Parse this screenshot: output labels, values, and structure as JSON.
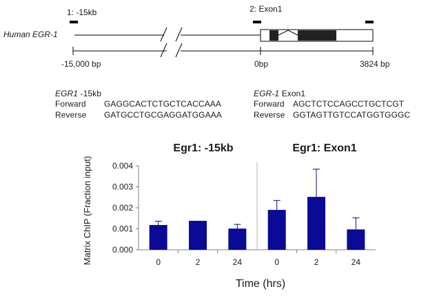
{
  "diagram": {
    "gene_label": "Human EGR-1",
    "site1_label": "1: -15kb",
    "site2_label": "2: Exon1",
    "scale_left": "-15,000  bp",
    "scale_mid": "0bp",
    "scale_right": "3824 bp"
  },
  "primers": {
    "left": {
      "gene": "EGR1",
      "site": " -15kb",
      "forward_label": "Forward",
      "forward_seq": "GAGGCACTCTGCTCACCAAA",
      "reverse_label": "Reverse",
      "reverse_seq": "GATGCCTGCGAGGATGGAAA"
    },
    "right": {
      "gene": "EGR-1",
      "site": " Exon1",
      "forward_label": "Forward",
      "forward_seq": "AGCTCTCCAGCCTGCTCGT",
      "reverse_label": "Reverse",
      "reverse_seq": "GGTAGTTGTCCATGGTGGGC"
    }
  },
  "chart_data": {
    "type": "bar",
    "ylabel": "Matrix ChIP (Fraction input)",
    "xlabel": "Time (hrs)",
    "ylim": [
      0,
      0.004
    ],
    "yticks": [
      "0.000",
      "0.001",
      "0.002",
      "0.003",
      "0.004"
    ],
    "bar_color": "#0a0a96",
    "panels": [
      {
        "title": "Egr1: -15kb",
        "categories": [
          "0",
          "2",
          "24"
        ],
        "values": [
          0.00118,
          0.00138,
          0.00101
        ],
        "errors": [
          0.00018,
          0.0,
          0.0002
        ]
      },
      {
        "title": "Egr1: Exon1",
        "categories": [
          "0",
          "2",
          "24"
        ],
        "values": [
          0.0019,
          0.00252,
          0.00097
        ],
        "errors": [
          0.00045,
          0.00132,
          0.00055
        ]
      }
    ]
  }
}
